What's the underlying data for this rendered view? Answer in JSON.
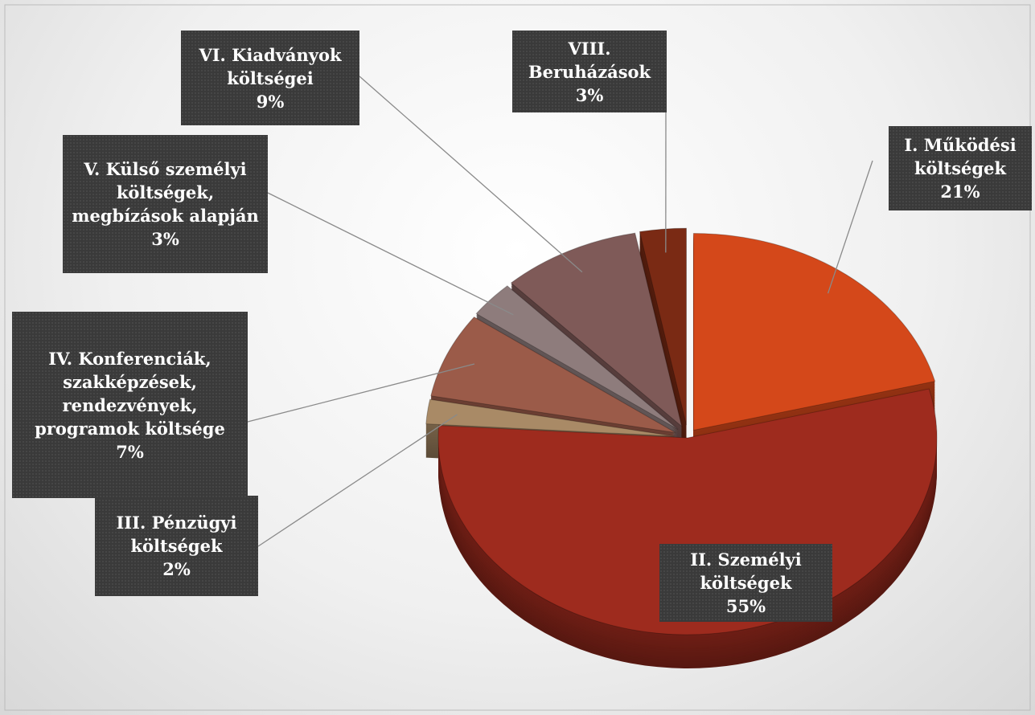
{
  "chart_data": {
    "type": "pie",
    "categories": [
      "I. Működési költségek",
      "II. Személyi költségek",
      "III. Pénzügyi költségek",
      "IV. Konferenciák, szakképzések, rendezvények, programok költsége",
      "V. Külső személyi költségek, megbízások alapján",
      "VI. Kiadványok költségei",
      "VIII. Beruházások"
    ],
    "values": [
      21,
      55,
      2,
      7,
      3,
      9,
      3
    ],
    "value_labels": [
      "21%",
      "55%",
      "2%",
      "7%",
      "3%",
      "9%",
      "3%"
    ],
    "colors": [
      "#d4481a",
      "#9e2b1e",
      "#a98a66",
      "#9b5b49",
      "#8e7c7c",
      "#7f5a58",
      "#7a2a14"
    ]
  }
}
